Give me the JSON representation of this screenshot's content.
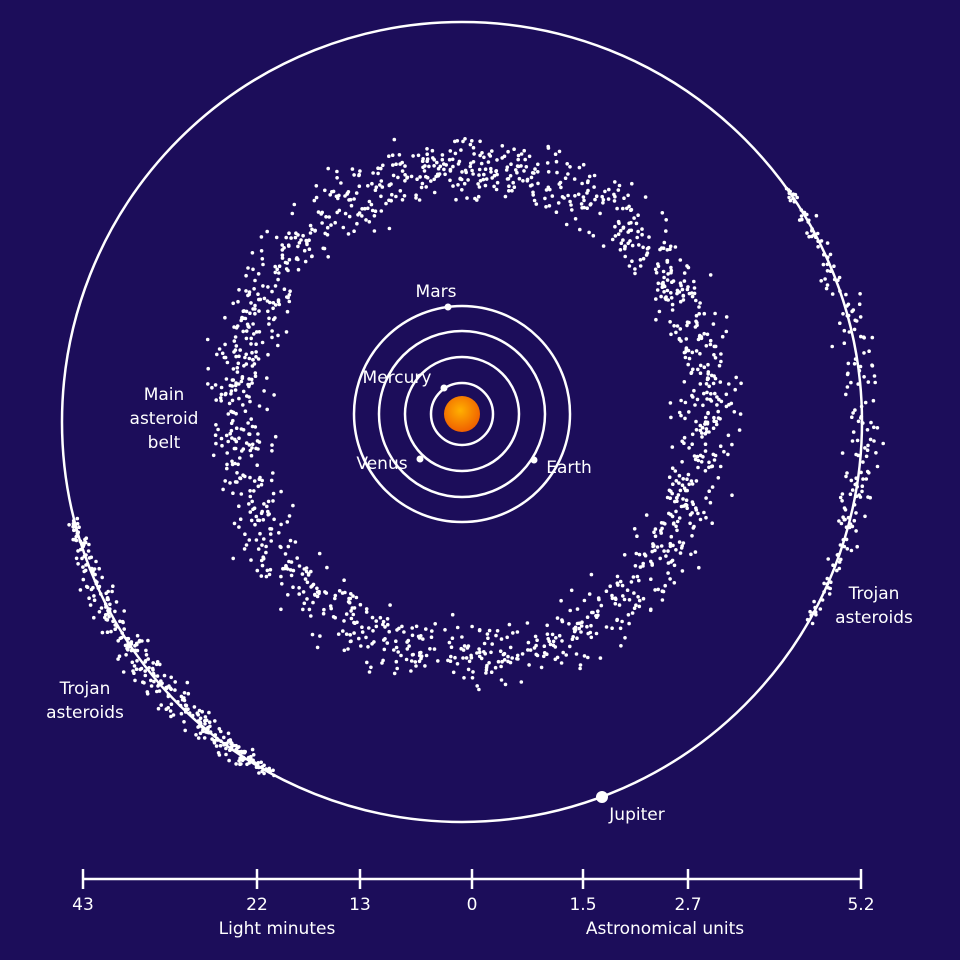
{
  "planets": {
    "mercury": "Mercury",
    "venus": "Venus",
    "earth": "Earth",
    "mars": "Mars",
    "jupiter": "Jupiter"
  },
  "regions": {
    "main_belt": [
      "Main",
      "asteroid",
      "belt"
    ],
    "trojans_left": [
      "Trojan",
      "asteroids"
    ],
    "trojans_right": [
      "Trojan",
      "asteroids"
    ]
  },
  "scale": {
    "ticks": [
      "43",
      "22",
      "13",
      "0",
      "1.5",
      "2.7",
      "5.2"
    ],
    "left_caption": "Light minutes",
    "right_caption": "Astronomical units"
  }
}
